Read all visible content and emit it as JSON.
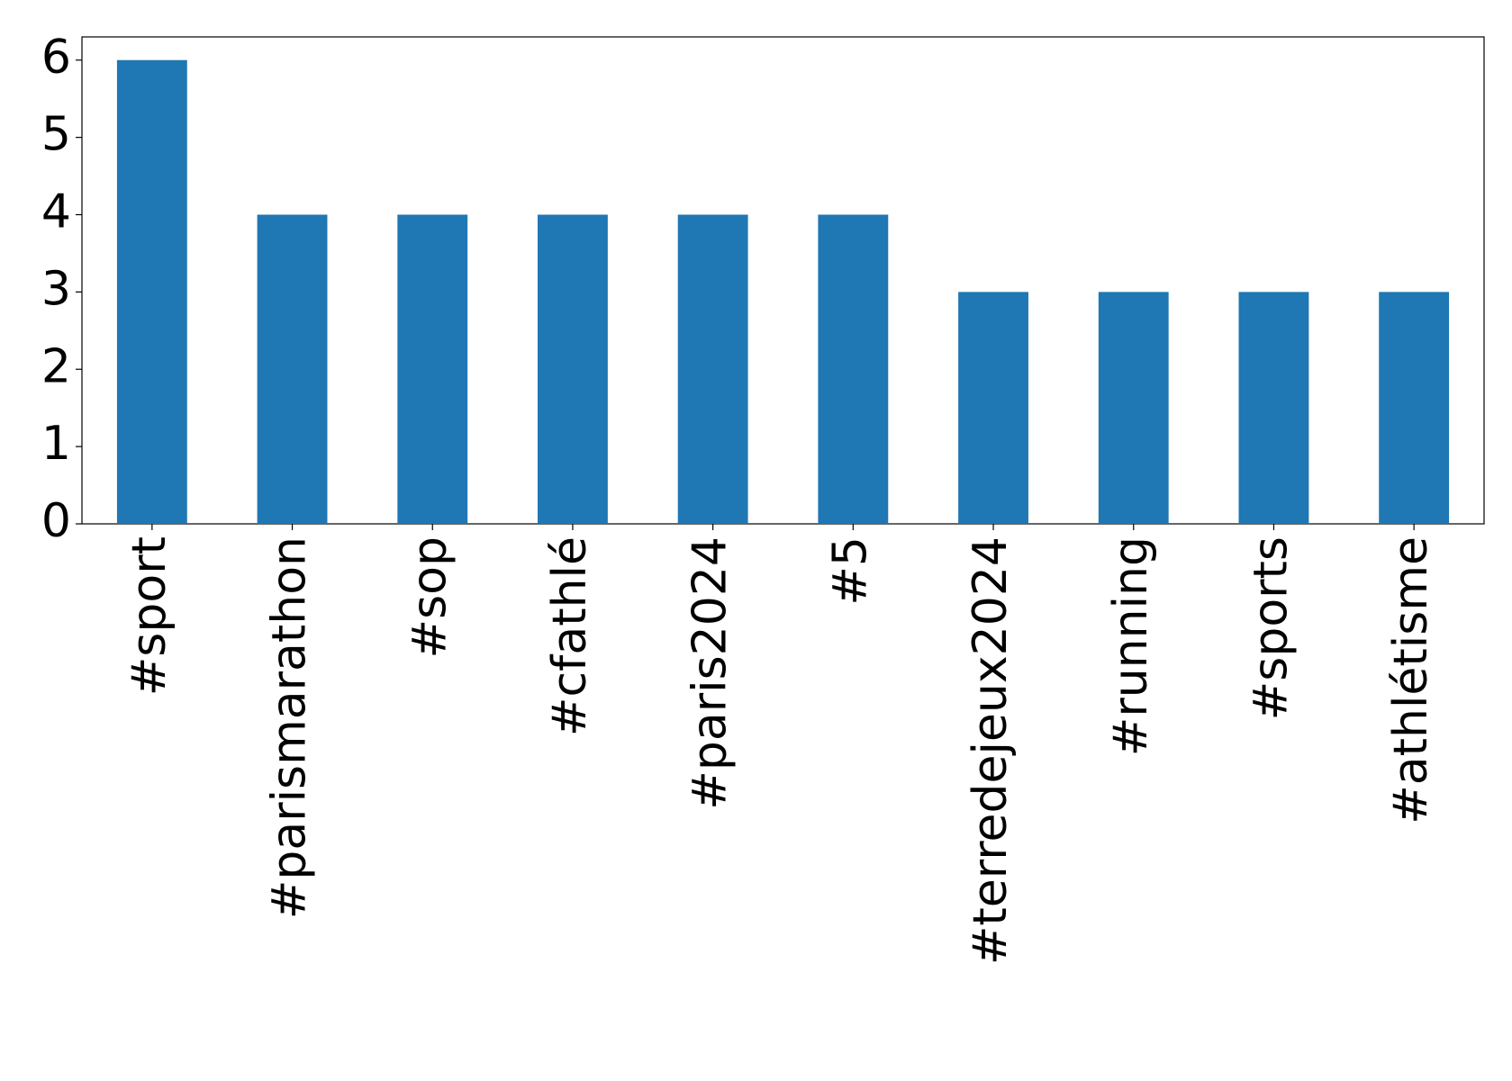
{
  "chart_data": {
    "type": "bar",
    "categories": [
      "#sport",
      "#parismarathon",
      "#sop",
      "#cfathlé",
      "#paris2024",
      "#5",
      "#terredejeux2024",
      "#running",
      "#sports",
      "#athlétisme"
    ],
    "values": [
      6,
      4,
      4,
      4,
      4,
      4,
      3,
      3,
      3,
      3
    ],
    "color": "#1f77b4",
    "ylim": [
      0,
      6.3
    ],
    "yticks": [
      0,
      1,
      2,
      3,
      4,
      5,
      6
    ],
    "grid": false
  }
}
